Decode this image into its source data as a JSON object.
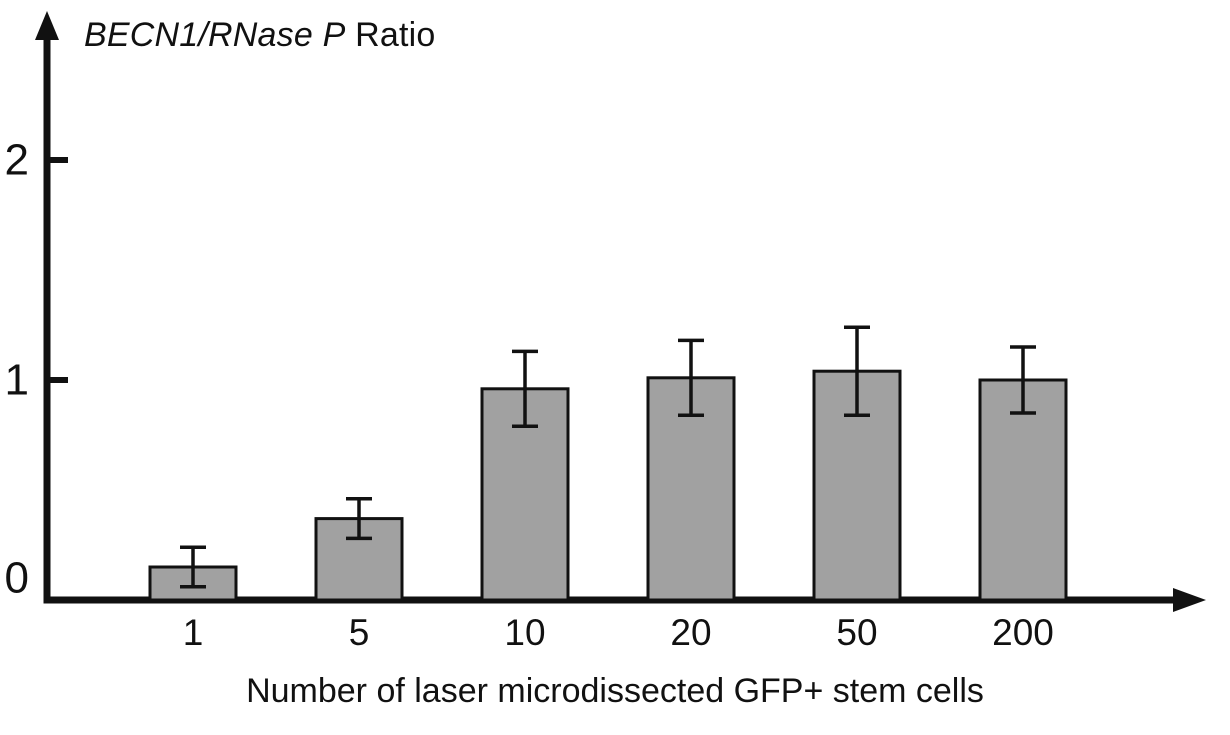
{
  "chart_data": {
    "type": "bar",
    "title": "BECN1/RNase P Ratio",
    "title_italic": "BECN1/RNase P",
    "title_regular": " Ratio",
    "xlabel": "Number of laser microdissected GFP+ stem cells",
    "ylabel": "BECN1/RNase P Ratio",
    "categories": [
      "1",
      "5",
      "10",
      "20",
      "50",
      "200"
    ],
    "values": [
      0.15,
      0.37,
      0.96,
      1.01,
      1.04,
      1.0
    ],
    "errors": [
      0.09,
      0.09,
      0.17,
      0.17,
      0.2,
      0.15
    ],
    "yticks": [
      0,
      1,
      2
    ],
    "ylim": [
      0,
      2.6
    ],
    "grid": false,
    "legend": "none",
    "bar_color": "#a1a1a1",
    "bar_border_color": "#111111",
    "error_bar_color": "#111111",
    "axis_color": "#111111",
    "background_color": "#ffffff"
  }
}
